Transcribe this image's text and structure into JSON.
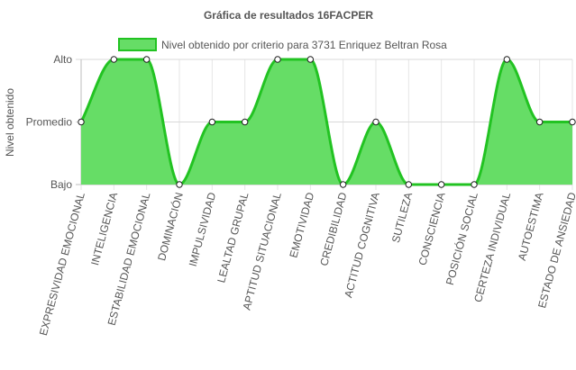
{
  "chart_data": {
    "type": "line",
    "title": "Gráfica de resultados 16FACPER",
    "ylabel": "Nivel obtenido",
    "xlabel": "",
    "y_categories": [
      "Bajo",
      "Promedio",
      "Alto"
    ],
    "categories": [
      "EXPRESIVIDAD EMOCIONAL",
      "INTELIGENCIA",
      "ESTABILIDAD EMOCIONAL",
      "DOMINACIÓN",
      "IMPULSIVIDAD",
      "LEALTAD GRUPAL",
      "APTITUD SITUACIONAL",
      "EMOTIVIDAD",
      "CREDIBILIDAD",
      "ACTITUD COGNITIVA",
      "SUTILEZA",
      "CONSCIENCIA",
      "POSICIÓN SOCIAL",
      "CERTEZA INDIVIDUAL",
      "AUTOESTIMA",
      "ESTADO DE ANSIEDAD"
    ],
    "series": [
      {
        "name": "Nivel obtenido por criterio para 3731 Enriquez Beltran Rosa",
        "values": [
          1,
          2,
          2,
          0,
          1,
          1,
          2,
          2,
          0,
          1,
          0,
          0,
          0,
          2,
          1,
          1
        ],
        "line_color": "#22c322",
        "fill_color": "#66dd66"
      }
    ],
    "ylim": [
      0,
      2
    ],
    "fill": true,
    "smooth": true,
    "grid": true,
    "legend_position": "top"
  }
}
